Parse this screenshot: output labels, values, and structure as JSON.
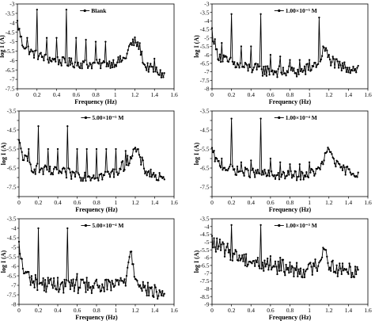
{
  "chart_data": [
    {
      "type": "line",
      "title": "",
      "xlabel": "Frequency (Hz)",
      "ylabel": "log I (A)",
      "xlim": [
        0,
        1.6
      ],
      "ylim": [
        -7.5,
        -3
      ],
      "xticks": [
        "0",
        "0.2",
        "0.4",
        "0.6",
        "0.8",
        "1",
        "1.2",
        "1.4",
        "1.6"
      ],
      "yticks": [
        "-3",
        "-3.5",
        "-4",
        "-4.5",
        "-5",
        "-5.5",
        "-6",
        "-6.5",
        "-7",
        "-7.5"
      ],
      "legend": "top-left",
      "series": [
        {
          "name": "Blank"
        }
      ],
      "baseline": [
        [
          0,
          -4.0
        ],
        [
          0.05,
          -5.1
        ],
        [
          0.15,
          -5.6
        ],
        [
          0.3,
          -5.9
        ],
        [
          0.5,
          -6.1
        ],
        [
          0.7,
          -6.2
        ],
        [
          0.9,
          -6.2
        ],
        [
          1.0,
          -6.1
        ],
        [
          1.1,
          -5.9
        ],
        [
          1.15,
          -5.2
        ],
        [
          1.2,
          -5.0
        ],
        [
          1.25,
          -5.3
        ],
        [
          1.3,
          -6.3
        ],
        [
          1.4,
          -6.5
        ],
        [
          1.5,
          -6.8
        ]
      ],
      "peaks": [
        [
          0.2,
          -3.3
        ],
        [
          0.5,
          -3.3
        ],
        [
          0.1,
          -4.8
        ],
        [
          0.3,
          -4.8
        ],
        [
          0.4,
          -4.8
        ],
        [
          0.6,
          -4.8
        ],
        [
          0.7,
          -4.9
        ],
        [
          0.8,
          -5.0
        ],
        [
          0.9,
          -5.0
        ],
        [
          1.4,
          -5.9
        ]
      ],
      "noise": 0.25,
      "x_end": 1.5
    },
    {
      "type": "line",
      "title": "",
      "xlabel": "Frequency (Hz)",
      "ylabel": "log I (A)",
      "xlim": [
        0,
        1.6
      ],
      "ylim": [
        -8,
        -3
      ],
      "xticks": [
        "0",
        "0.2",
        "0.4",
        "0.6",
        "0.8",
        "1",
        "1.2",
        "1.4",
        "1.6"
      ],
      "yticks": [
        "-3",
        "-3.5",
        "-4",
        "-4.5",
        "-5",
        "-5.5",
        "-6",
        "-6.5",
        "-7",
        "-7.5",
        "-8"
      ],
      "legend": "top-left",
      "series": [
        {
          "name": "1.00×10⁻⁵ M"
        }
      ],
      "baseline": [
        [
          0,
          -4.6
        ],
        [
          0.05,
          -5.9
        ],
        [
          0.15,
          -6.4
        ],
        [
          0.3,
          -6.7
        ],
        [
          0.5,
          -6.9
        ],
        [
          0.7,
          -7.0
        ],
        [
          0.9,
          -7.0
        ],
        [
          1.0,
          -6.8
        ],
        [
          1.1,
          -6.4
        ],
        [
          1.15,
          -5.6
        ],
        [
          1.2,
          -6.2
        ],
        [
          1.3,
          -6.7
        ],
        [
          1.5,
          -6.8
        ]
      ],
      "peaks": [
        [
          0.2,
          -3.6
        ],
        [
          0.5,
          -3.6
        ],
        [
          0.1,
          -5.3
        ],
        [
          0.3,
          -5.5
        ],
        [
          0.4,
          -5.5
        ],
        [
          0.6,
          -6.0
        ],
        [
          0.7,
          -6.1
        ],
        [
          0.8,
          -6.3
        ],
        [
          0.9,
          -6.3
        ],
        [
          1.0,
          -6.3
        ],
        [
          1.1,
          -3.8
        ]
      ],
      "noise": 0.35,
      "x_end": 1.5
    },
    {
      "type": "line",
      "title": "",
      "xlabel": "Frequency (Hz)",
      "ylabel": "log I (A)",
      "xlim": [
        0,
        1.6
      ],
      "ylim": [
        -8,
        -3.5
      ],
      "xticks": [
        "0",
        "0.2",
        "0.4",
        "0.6",
        "0.8",
        "1",
        "1.2",
        "1.4",
        "1.6"
      ],
      "yticks": [
        "-3.5",
        "",
        "-4.5",
        "",
        "-5.5",
        "",
        "-6.5",
        "",
        "-7.5",
        ""
      ],
      "legend": "top-left",
      "series": [
        {
          "name": "5.00×10⁻⁵ M"
        }
      ],
      "baseline": [
        [
          0,
          -5.2
        ],
        [
          0.05,
          -6.0
        ],
        [
          0.15,
          -6.5
        ],
        [
          0.3,
          -6.7
        ],
        [
          0.5,
          -6.8
        ],
        [
          0.7,
          -6.9
        ],
        [
          0.9,
          -6.9
        ],
        [
          1.0,
          -6.7
        ],
        [
          1.1,
          -6.3
        ],
        [
          1.2,
          -5.5
        ],
        [
          1.25,
          -6.0
        ],
        [
          1.3,
          -6.6
        ],
        [
          1.5,
          -7.2
        ]
      ],
      "peaks": [
        [
          0.2,
          -4.3
        ],
        [
          0.5,
          -4.3
        ],
        [
          0.1,
          -5.5
        ],
        [
          0.3,
          -5.5
        ],
        [
          0.4,
          -5.5
        ],
        [
          0.6,
          -5.5
        ],
        [
          0.7,
          -5.5
        ],
        [
          0.8,
          -5.5
        ],
        [
          0.9,
          -5.5
        ],
        [
          1.0,
          -5.5
        ],
        [
          1.1,
          -5.6
        ]
      ],
      "noise": 0.3,
      "x_end": 1.5
    },
    {
      "type": "line",
      "title": "",
      "xlabel": "Frequency (Hz)",
      "ylabel": "log I (A)",
      "xlim": [
        0,
        1.6
      ],
      "ylim": [
        -8,
        -3.5
      ],
      "xticks": [
        "0",
        "0.2",
        "0.4",
        "0.6",
        "0.8",
        "1",
        "1.2",
        "1.4",
        "1.6"
      ],
      "yticks": [
        "-3.5",
        "",
        "-4.5",
        "",
        "-5.5",
        "",
        "-6.5",
        "",
        "-7.5",
        ""
      ],
      "legend": "top-left",
      "series": [
        {
          "name": "1.00×10⁻⁴ M"
        }
      ],
      "baseline": [
        [
          0,
          -5.6
        ],
        [
          0.05,
          -6.2
        ],
        [
          0.15,
          -6.5
        ],
        [
          0.3,
          -6.7
        ],
        [
          0.5,
          -6.8
        ],
        [
          0.7,
          -6.9
        ],
        [
          0.9,
          -6.9
        ],
        [
          1.0,
          -6.8
        ],
        [
          1.1,
          -6.6
        ],
        [
          1.2,
          -5.5
        ],
        [
          1.25,
          -6.0
        ],
        [
          1.3,
          -6.5
        ],
        [
          1.5,
          -6.8
        ]
      ],
      "peaks": [
        [
          0.2,
          -3.9
        ],
        [
          0.5,
          -3.9
        ],
        [
          0.1,
          -6.0
        ],
        [
          0.3,
          -6.2
        ],
        [
          0.4,
          -6.1
        ],
        [
          0.6,
          -6.0
        ],
        [
          0.7,
          -6.2
        ],
        [
          0.8,
          -6.3
        ],
        [
          0.9,
          -6.3
        ],
        [
          1.0,
          -6.2
        ]
      ],
      "noise": 0.25,
      "x_end": 1.5
    },
    {
      "type": "line",
      "title": "",
      "xlabel": "Frequency (Hz)",
      "ylabel": "log I (A)",
      "xlim": [
        0,
        1.6
      ],
      "ylim": [
        -8,
        -3.5
      ],
      "xticks": [
        "0",
        "0.2",
        "0.4",
        "0.6",
        "0.8",
        "1",
        "1.2",
        "1.4",
        "1.6"
      ],
      "yticks": [
        "-3.5",
        "-4",
        "-4.5",
        "-5",
        "-5.5",
        "-6",
        "-6.5",
        "-7",
        "-7.5",
        "-8"
      ],
      "legend": "top-left",
      "series": [
        {
          "name": "5.00×10⁻⁴ M"
        }
      ],
      "baseline": [
        [
          0,
          -5.0
        ],
        [
          0.05,
          -6.3
        ],
        [
          0.15,
          -6.8
        ],
        [
          0.3,
          -7.0
        ],
        [
          0.5,
          -7.0
        ],
        [
          0.7,
          -7.1
        ],
        [
          0.9,
          -7.1
        ],
        [
          1.0,
          -7.0
        ],
        [
          1.1,
          -6.7
        ],
        [
          1.15,
          -5.1
        ],
        [
          1.2,
          -6.5
        ],
        [
          1.3,
          -7.2
        ],
        [
          1.5,
          -7.5
        ]
      ],
      "peaks": [
        [
          0.2,
          -4.0
        ],
        [
          0.5,
          -4.0
        ],
        [
          0.1,
          -6.3
        ],
        [
          0.3,
          -6.6
        ],
        [
          0.4,
          -6.6
        ],
        [
          0.6,
          -6.4
        ],
        [
          0.7,
          -6.6
        ],
        [
          0.8,
          -6.7
        ],
        [
          0.9,
          -6.7
        ],
        [
          1.0,
          -6.7
        ]
      ],
      "noise": 0.4,
      "x_end": 1.5
    },
    {
      "type": "line",
      "title": "",
      "xlabel": "Frequency (Hz)",
      "ylabel": "log I (A)",
      "xlim": [
        0,
        1.6
      ],
      "ylim": [
        -9,
        -3.5
      ],
      "xticks": [
        "0",
        "0.2",
        "0.4",
        "0.6",
        "0.8",
        "1",
        "1.2",
        "1.4",
        "1.6"
      ],
      "yticks": [
        "-3.5",
        "-4",
        "-4.5",
        "-5",
        "-5.5",
        "-6",
        "-6.5",
        "-7",
        "-7.5",
        "-8",
        "-8.5",
        "-9"
      ],
      "legend": "top-left",
      "series": [
        {
          "name": "1.00×10⁻³ M"
        }
      ],
      "baseline": [
        [
          0,
          -5.0
        ],
        [
          0.1,
          -5.4
        ],
        [
          0.2,
          -5.7
        ],
        [
          0.3,
          -6.0
        ],
        [
          0.5,
          -6.4
        ],
        [
          0.7,
          -6.6
        ],
        [
          0.9,
          -6.8
        ],
        [
          1.0,
          -6.8
        ],
        [
          1.1,
          -6.3
        ],
        [
          1.15,
          -5.2
        ],
        [
          1.2,
          -6.4
        ],
        [
          1.3,
          -6.8
        ],
        [
          1.5,
          -6.8
        ]
      ],
      "peaks": [
        [
          0.2,
          -3.9
        ],
        [
          0.5,
          -3.9
        ],
        [
          0.6,
          -5.9
        ],
        [
          0.7,
          -6.0
        ]
      ],
      "noise": 0.5,
      "x_end": 1.5
    }
  ]
}
